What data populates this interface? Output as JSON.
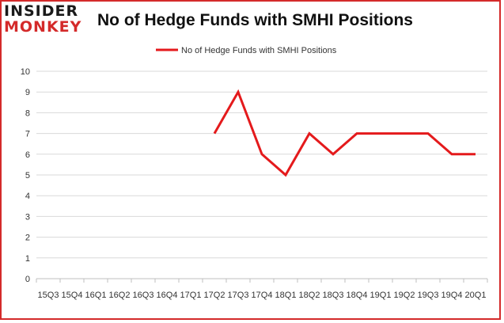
{
  "logo": {
    "line1": "INSIDER",
    "line2": "MONKEY"
  },
  "chart_data": {
    "type": "line",
    "title": "No of Hedge Funds with SMHI Positions",
    "xlabel": "",
    "ylabel": "",
    "categories": [
      "15Q3",
      "15Q4",
      "16Q1",
      "16Q2",
      "16Q3",
      "16Q4",
      "17Q1",
      "17Q2",
      "17Q3",
      "17Q4",
      "18Q1",
      "18Q2",
      "18Q3",
      "18Q4",
      "19Q1",
      "19Q2",
      "19Q3",
      "19Q4",
      "20Q1"
    ],
    "series": [
      {
        "name": "No of Hedge Funds with SMHI Positions",
        "color": "#e41a1c",
        "values": [
          null,
          null,
          null,
          null,
          null,
          null,
          null,
          7,
          9,
          6,
          5,
          7,
          6,
          7,
          7,
          7,
          7,
          6,
          6
        ]
      }
    ],
    "ylim": [
      0,
      10
    ],
    "yticks": [
      0,
      1,
      2,
      3,
      4,
      5,
      6,
      7,
      8,
      9,
      10
    ],
    "grid": true,
    "legend_position": "top-center"
  }
}
